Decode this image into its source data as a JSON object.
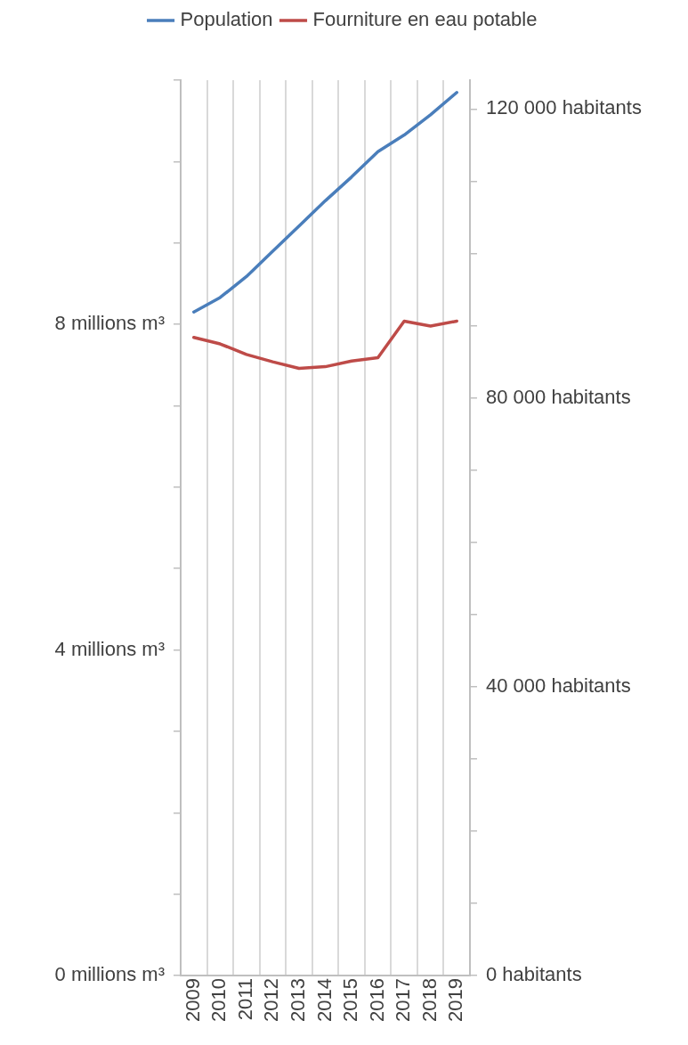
{
  "chart_data": {
    "type": "line",
    "categories": [
      "2009",
      "2010",
      "2011",
      "2012",
      "2013",
      "2014",
      "2015",
      "2016",
      "2017",
      "2018",
      "2019"
    ],
    "series": [
      {
        "name": "Population",
        "color": "#4a7ebb",
        "axis": "y2",
        "values": [
          91900,
          93900,
          96800,
          100300,
          103800,
          107300,
          110600,
          114100,
          116400,
          119200,
          122300
        ]
      },
      {
        "name": "Fourniture en eau potable",
        "color": "#be4b48",
        "values": [
          7.84,
          7.76,
          7.63,
          7.54,
          7.46,
          7.48,
          7.55,
          7.59,
          8.04,
          7.98,
          8.04
        ]
      }
    ],
    "ylim": [
      0,
      11
    ],
    "yticks": [
      {
        "value": 0,
        "label": "0 millions m³"
      },
      {
        "value": 1,
        "label": null
      },
      {
        "value": 2,
        "label": null
      },
      {
        "value": 3,
        "label": null
      },
      {
        "value": 4,
        "label": "4 millions m³"
      },
      {
        "value": 5,
        "label": null
      },
      {
        "value": 6,
        "label": null
      },
      {
        "value": 7,
        "label": null
      },
      {
        "value": 8,
        "label": "8 millions m³"
      },
      {
        "value": 9,
        "label": null
      },
      {
        "value": 10,
        "label": null
      },
      {
        "value": 11,
        "label": null
      }
    ],
    "y2lim": [
      0,
      124000
    ],
    "y2ticks": [
      {
        "value": 0,
        "label": "0 habitants"
      },
      {
        "value": 10000,
        "label": null
      },
      {
        "value": 20000,
        "label": null
      },
      {
        "value": 30000,
        "label": null
      },
      {
        "value": 40000,
        "label": "40 000 habitants"
      },
      {
        "value": 50000,
        "label": null
      },
      {
        "value": 60000,
        "label": null
      },
      {
        "value": 70000,
        "label": null
      },
      {
        "value": 80000,
        "label": "80 000 habitants"
      },
      {
        "value": 90000,
        "label": null
      },
      {
        "value": 100000,
        "label": null
      },
      {
        "value": 110000,
        "label": null
      },
      {
        "value": 120000,
        "label": "120 000 habitants"
      }
    ],
    "grid": "x",
    "legend": "top",
    "marker": "none",
    "line_style": "solid"
  }
}
